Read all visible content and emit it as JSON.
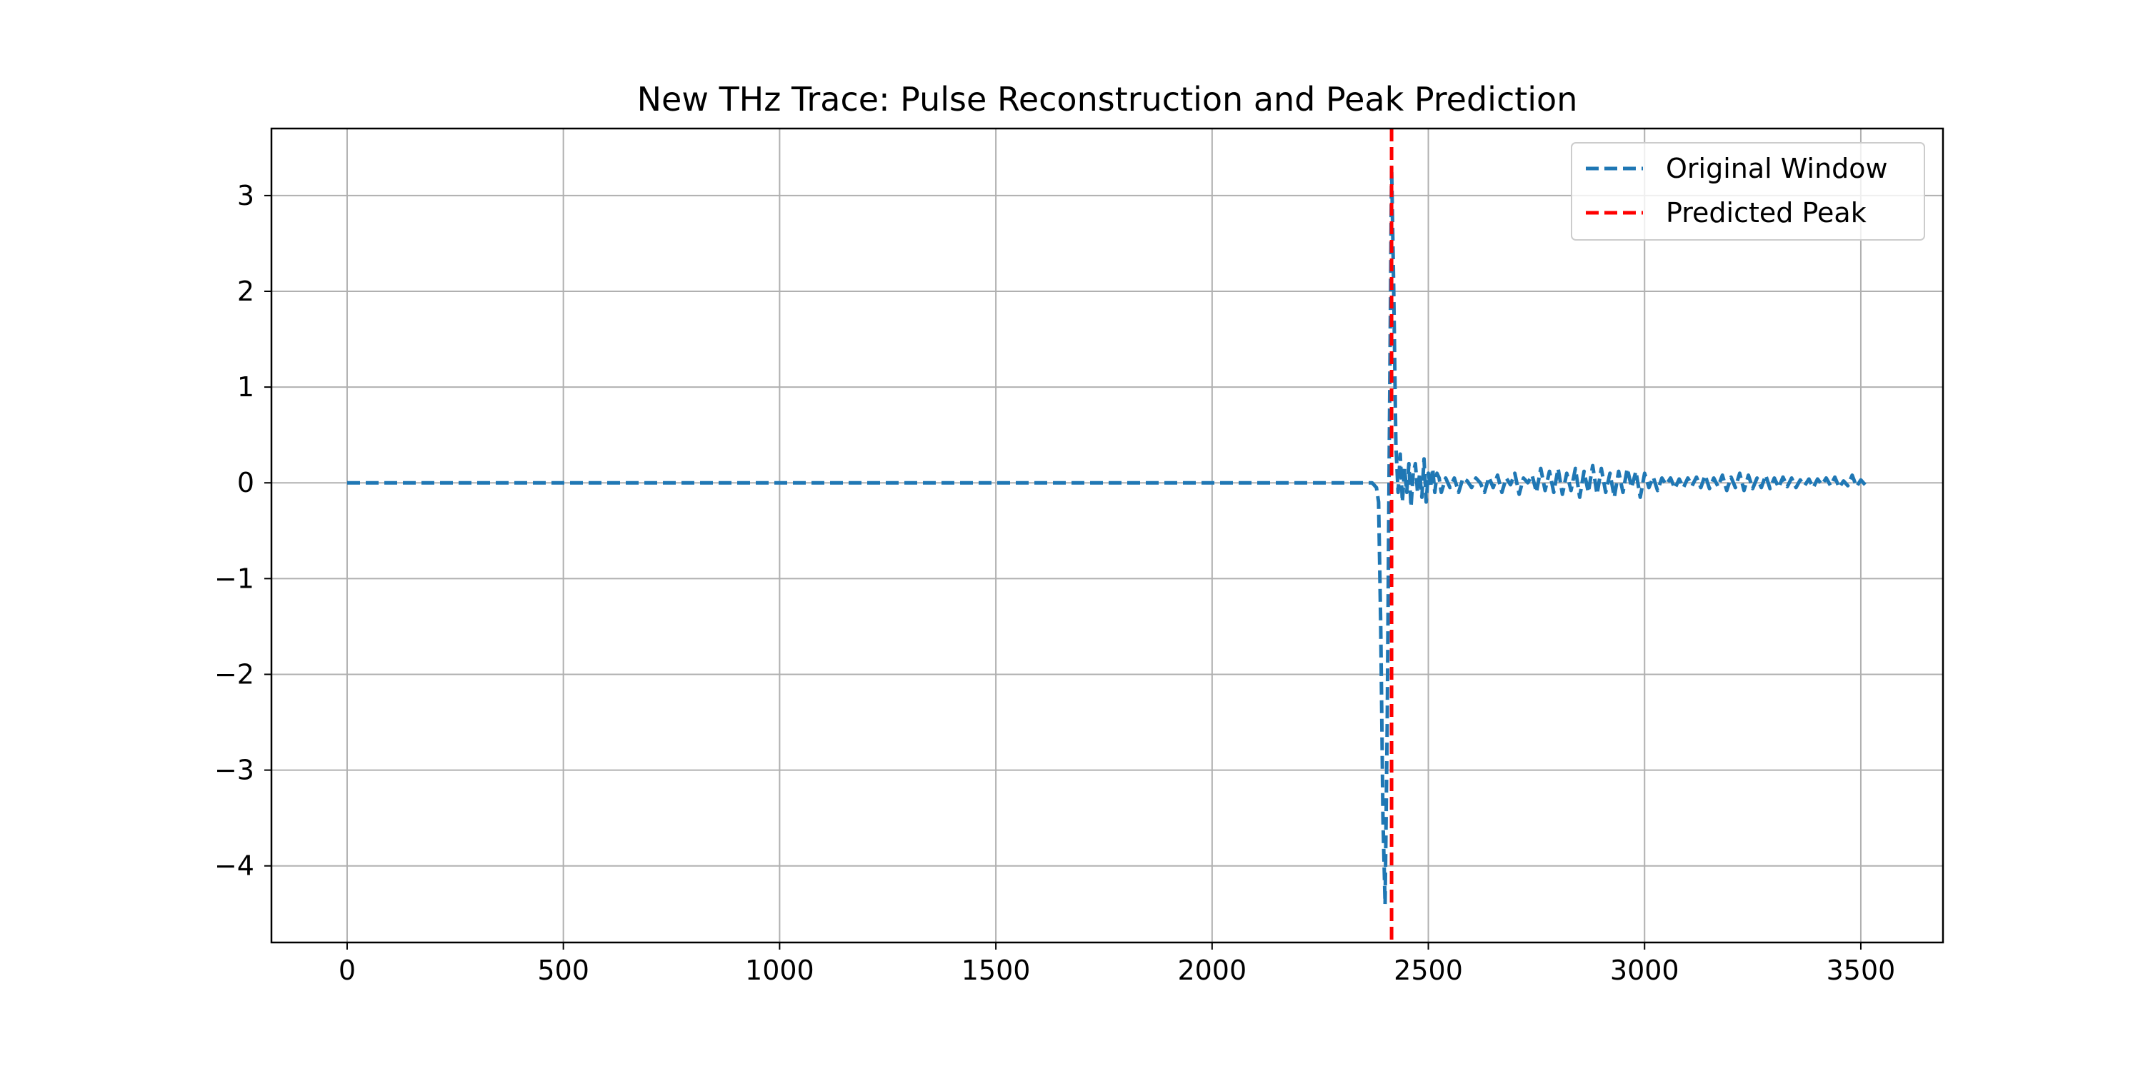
{
  "chart_data": {
    "type": "line",
    "title": "New THz Trace: Pulse Reconstruction and Peak Prediction",
    "xlabel": "",
    "ylabel": "",
    "xlim": [
      -175,
      3690
    ],
    "ylim": [
      -4.8,
      3.7
    ],
    "xticks": [
      0,
      500,
      1000,
      1500,
      2000,
      2500,
      3000,
      3500
    ],
    "yticks": [
      -4,
      -3,
      -2,
      -1,
      0,
      1,
      2,
      3
    ],
    "xtick_labels": [
      "0",
      "500",
      "1000",
      "1500",
      "2000",
      "2500",
      "3000",
      "3500"
    ],
    "ytick_labels": [
      "−4",
      "−3",
      "−2",
      "−1",
      "0",
      "1",
      "2",
      "3"
    ],
    "grid": true,
    "legend_position": "top-right",
    "series": [
      {
        "name": "Original Window",
        "color": "#1f77b4",
        "style": "dashed",
        "x": [
          0,
          2370,
          2380,
          2385,
          2390,
          2395,
          2400,
          2405,
          2410,
          2415,
          2420,
          2425,
          2430,
          2435,
          2440,
          2445,
          2450,
          2455,
          2460,
          2465,
          2470,
          2475,
          2480,
          2485,
          2490,
          2495,
          2500,
          2505,
          2510,
          2515,
          2520,
          2525,
          2530,
          2540,
          2550,
          2560,
          2570,
          2580,
          2590,
          2600,
          2610,
          2620,
          2630,
          2640,
          2650,
          2660,
          2670,
          2680,
          2690,
          2700,
          2710,
          2720,
          2730,
          2740,
          2750,
          2760,
          2770,
          2780,
          2790,
          2800,
          2810,
          2820,
          2830,
          2840,
          2850,
          2860,
          2870,
          2880,
          2890,
          2900,
          2910,
          2920,
          2930,
          2940,
          2950,
          2960,
          2970,
          2980,
          2990,
          3000,
          3010,
          3020,
          3030,
          3040,
          3050,
          3060,
          3070,
          3080,
          3090,
          3100,
          3110,
          3120,
          3130,
          3140,
          3150,
          3160,
          3170,
          3180,
          3190,
          3200,
          3210,
          3220,
          3230,
          3240,
          3250,
          3260,
          3270,
          3280,
          3290,
          3300,
          3310,
          3320,
          3330,
          3340,
          3350,
          3360,
          3370,
          3380,
          3390,
          3400,
          3410,
          3420,
          3430,
          3440,
          3450,
          3460,
          3470,
          3480,
          3490,
          3500,
          3510
        ],
        "y": [
          0,
          0,
          -0.05,
          -0.2,
          -1.5,
          -3.5,
          -4.4,
          -2.5,
          0.5,
          3.3,
          2.0,
          0.4,
          -0.1,
          0.3,
          -0.2,
          0.15,
          -0.1,
          0.2,
          -0.25,
          0.1,
          0.2,
          -0.1,
          0.1,
          -0.15,
          0.25,
          -0.2,
          0.1,
          -0.05,
          0.15,
          -0.1,
          0.1,
          0.05,
          -0.1,
          0.05,
          -0.05,
          0.05,
          -0.1,
          0.05,
          0.02,
          -0.05,
          0.05,
          0.0,
          -0.1,
          0.06,
          -0.05,
          0.08,
          -0.1,
          0.05,
          -0.02,
          0.1,
          -0.12,
          0.05,
          0.0,
          0.08,
          -0.1,
          0.15,
          -0.08,
          0.12,
          -0.1,
          0.15,
          -0.12,
          0.1,
          -0.08,
          0.15,
          -0.15,
          0.12,
          -0.1,
          0.18,
          -0.12,
          0.15,
          -0.1,
          0.1,
          -0.15,
          0.12,
          -0.1,
          0.15,
          -0.05,
          0.12,
          -0.15,
          0.1,
          -0.05,
          0.06,
          -0.08,
          0.05,
          -0.02,
          0.05,
          -0.06,
          0.04,
          -0.05,
          0.05,
          -0.03,
          0.06,
          -0.05,
          0.08,
          -0.06,
          0.05,
          -0.04,
          0.08,
          -0.08,
          0.06,
          -0.05,
          0.1,
          -0.08,
          0.08,
          -0.06,
          0.05,
          -0.05,
          0.08,
          -0.06,
          0.05,
          -0.05,
          0.06,
          -0.04,
          0.05,
          -0.05,
          0.03,
          -0.03,
          0.04,
          -0.05,
          0.04,
          -0.02,
          0.05,
          -0.03,
          0.06,
          -0.05,
          0.02,
          -0.03,
          0.08,
          -0.04,
          0.03,
          -0.02
        ]
      },
      {
        "name": "Predicted Peak",
        "color": "#ff0000",
        "style": "dashed",
        "type": "vline",
        "x": 2415
      }
    ]
  }
}
